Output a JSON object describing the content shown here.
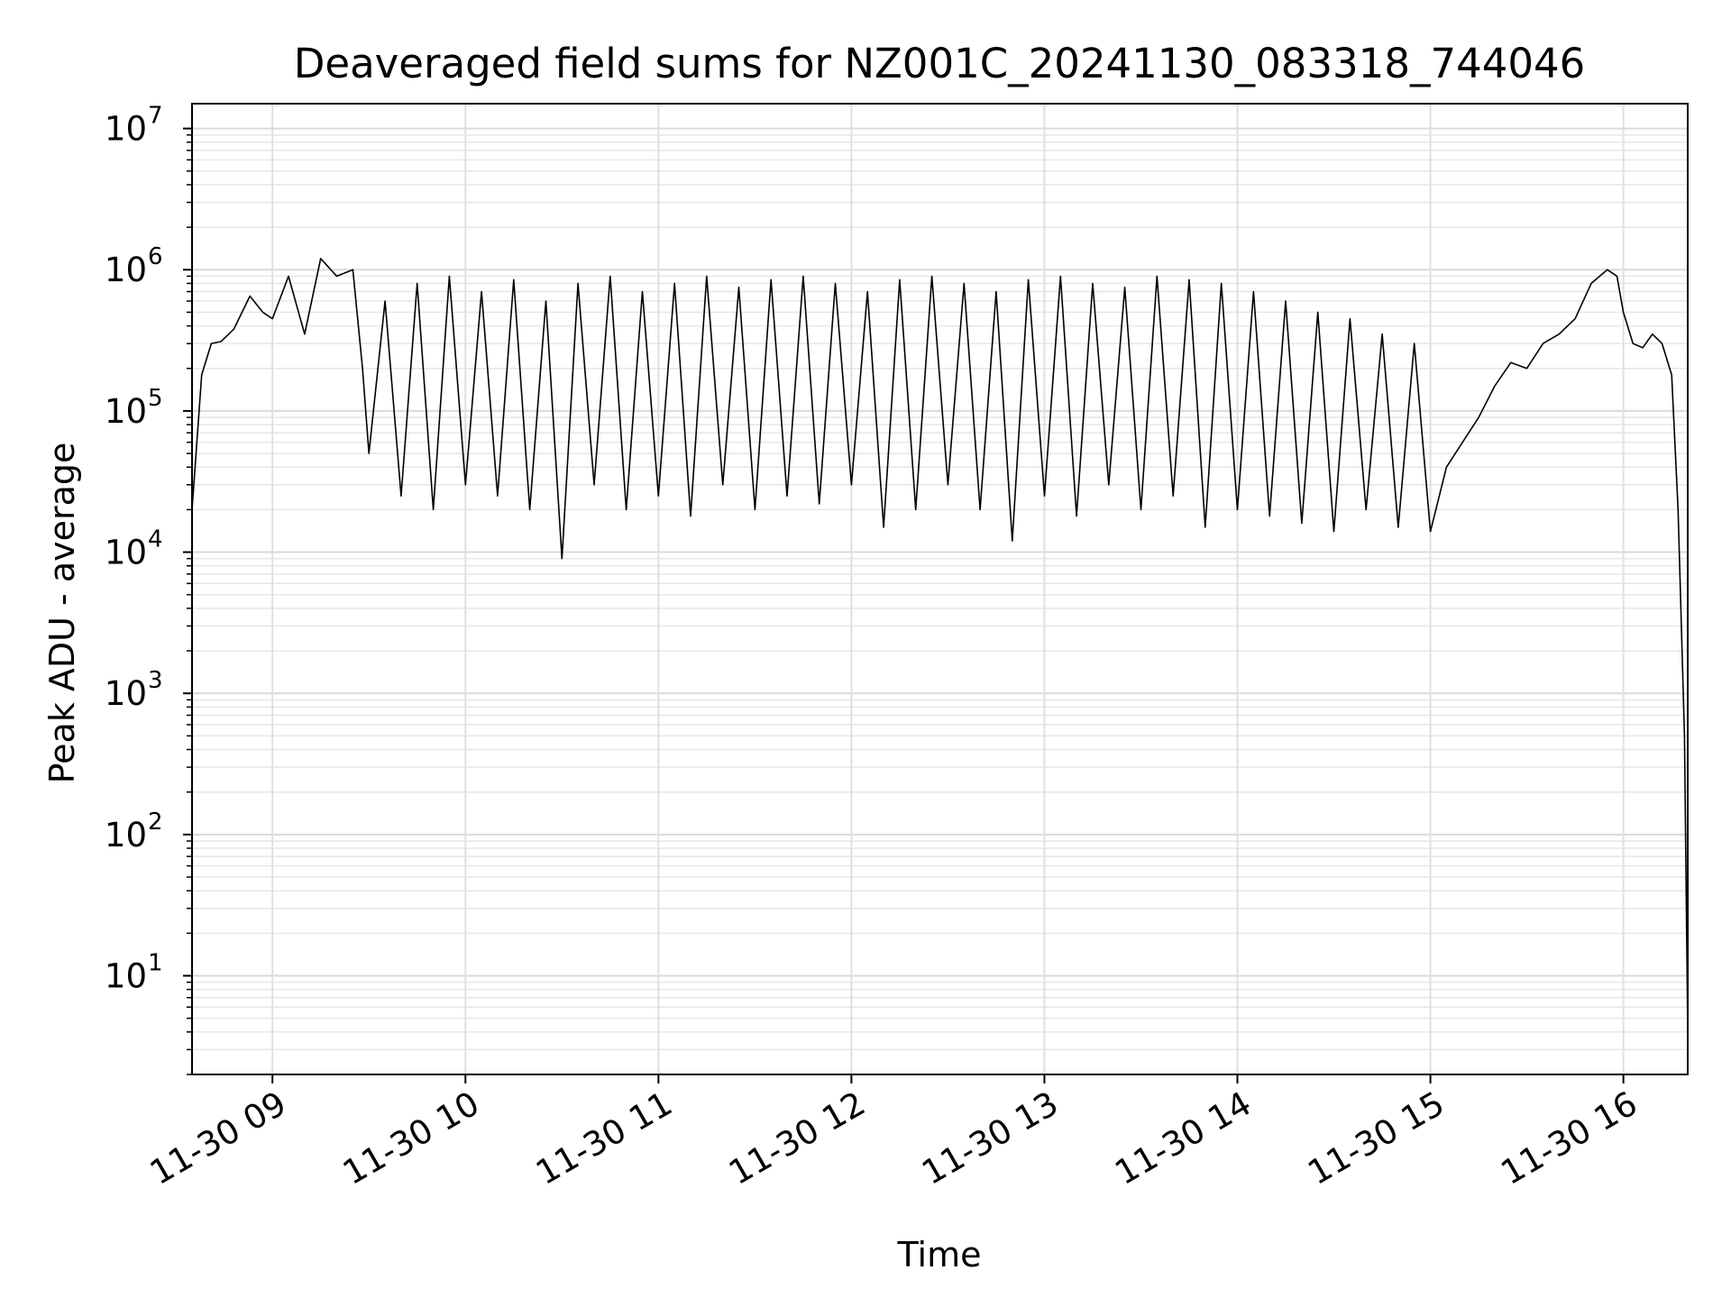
{
  "chart_data": {
    "type": "line",
    "title": "Deaveraged field sums for NZ001C_20241130_083318_744046",
    "xlabel": "Time",
    "ylabel": "Peak ADU - average",
    "yscale": "log",
    "xlim": [
      "2024-11-30 08:35",
      "2024-11-30 16:20"
    ],
    "ylim": [
      2,
      15000000
    ],
    "grid": true,
    "line_color": "#000000",
    "x_ticks": [
      {
        "time": "2024-11-30 09:00",
        "label": "11-30 09"
      },
      {
        "time": "2024-11-30 10:00",
        "label": "11-30 10"
      },
      {
        "time": "2024-11-30 11:00",
        "label": "11-30 11"
      },
      {
        "time": "2024-11-30 12:00",
        "label": "11-30 12"
      },
      {
        "time": "2024-11-30 13:00",
        "label": "11-30 13"
      },
      {
        "time": "2024-11-30 14:00",
        "label": "11-30 14"
      },
      {
        "time": "2024-11-30 15:00",
        "label": "11-30 15"
      },
      {
        "time": "2024-11-30 16:00",
        "label": "11-30 16"
      }
    ],
    "y_ticks": [
      {
        "value": 10,
        "base": "10",
        "exp": "1"
      },
      {
        "value": 100,
        "base": "10",
        "exp": "2"
      },
      {
        "value": 1000,
        "base": "10",
        "exp": "3"
      },
      {
        "value": 10000,
        "base": "10",
        "exp": "4"
      },
      {
        "value": 100000,
        "base": "10",
        "exp": "5"
      },
      {
        "value": 1000000,
        "base": "10",
        "exp": "6"
      },
      {
        "value": 10000000,
        "base": "10",
        "exp": "7"
      }
    ],
    "series": [
      {
        "x": [
          "2024-11-30 08:35",
          "2024-11-30 08:38",
          "2024-11-30 08:41",
          "2024-11-30 08:44",
          "2024-11-30 08:48",
          "2024-11-30 08:53",
          "2024-11-30 08:57",
          "2024-11-30 09:00",
          "2024-11-30 09:05",
          "2024-11-30 09:10",
          "2024-11-30 09:15",
          "2024-11-30 09:20",
          "2024-11-30 09:25",
          "2024-11-30 09:28",
          "2024-11-30 09:30",
          "2024-11-30 09:35",
          "2024-11-30 09:40",
          "2024-11-30 09:45",
          "2024-11-30 09:50",
          "2024-11-30 09:55",
          "2024-11-30 10:00",
          "2024-11-30 10:05",
          "2024-11-30 10:10",
          "2024-11-30 10:15",
          "2024-11-30 10:20",
          "2024-11-30 10:25",
          "2024-11-30 10:30",
          "2024-11-30 10:35",
          "2024-11-30 10:40",
          "2024-11-30 10:45",
          "2024-11-30 10:50",
          "2024-11-30 10:55",
          "2024-11-30 11:00",
          "2024-11-30 11:05",
          "2024-11-30 11:10",
          "2024-11-30 11:15",
          "2024-11-30 11:20",
          "2024-11-30 11:25",
          "2024-11-30 11:30",
          "2024-11-30 11:35",
          "2024-11-30 11:40",
          "2024-11-30 11:45",
          "2024-11-30 11:50",
          "2024-11-30 11:55",
          "2024-11-30 12:00",
          "2024-11-30 12:05",
          "2024-11-30 12:10",
          "2024-11-30 12:15",
          "2024-11-30 12:20",
          "2024-11-30 12:25",
          "2024-11-30 12:30",
          "2024-11-30 12:35",
          "2024-11-30 12:40",
          "2024-11-30 12:45",
          "2024-11-30 12:50",
          "2024-11-30 12:55",
          "2024-11-30 13:00",
          "2024-11-30 13:05",
          "2024-11-30 13:10",
          "2024-11-30 13:15",
          "2024-11-30 13:20",
          "2024-11-30 13:25",
          "2024-11-30 13:30",
          "2024-11-30 13:35",
          "2024-11-30 13:40",
          "2024-11-30 13:45",
          "2024-11-30 13:50",
          "2024-11-30 13:55",
          "2024-11-30 14:00",
          "2024-11-30 14:05",
          "2024-11-30 14:10",
          "2024-11-30 14:15",
          "2024-11-30 14:20",
          "2024-11-30 14:25",
          "2024-11-30 14:30",
          "2024-11-30 14:35",
          "2024-11-30 14:40",
          "2024-11-30 14:45",
          "2024-11-30 14:50",
          "2024-11-30 14:55",
          "2024-11-30 15:00",
          "2024-11-30 15:05",
          "2024-11-30 15:10",
          "2024-11-30 15:15",
          "2024-11-30 15:20",
          "2024-11-30 15:25",
          "2024-11-30 15:30",
          "2024-11-30 15:35",
          "2024-11-30 15:40",
          "2024-11-30 15:45",
          "2024-11-30 15:50",
          "2024-11-30 15:55",
          "2024-11-30 15:58",
          "2024-11-30 16:00",
          "2024-11-30 16:03",
          "2024-11-30 16:06",
          "2024-11-30 16:09",
          "2024-11-30 16:12",
          "2024-11-30 16:15",
          "2024-11-30 16:17",
          "2024-11-30 16:19",
          "2024-11-30 16:20"
        ],
        "y": [
          20000,
          180000,
          300000,
          310000,
          380000,
          650000,
          500000,
          450000,
          900000,
          350000,
          1200000,
          900000,
          1000000,
          200000,
          50000,
          600000,
          25000,
          800000,
          20000,
          900000,
          30000,
          700000,
          25000,
          850000,
          20000,
          600000,
          9000,
          800000,
          30000,
          900000,
          20000,
          700000,
          25000,
          800000,
          18000,
          900000,
          30000,
          750000,
          20000,
          850000,
          25000,
          900000,
          22000,
          800000,
          30000,
          700000,
          15000,
          850000,
          20000,
          900000,
          30000,
          800000,
          20000,
          700000,
          12000,
          850000,
          25000,
          900000,
          18000,
          800000,
          30000,
          750000,
          20000,
          900000,
          25000,
          850000,
          15000,
          800000,
          20000,
          700000,
          18000,
          600000,
          16000,
          500000,
          14000,
          450000,
          20000,
          350000,
          15000,
          300000,
          14000,
          40000,
          60000,
          90000,
          150000,
          220000,
          200000,
          300000,
          350000,
          450000,
          800000,
          1000000,
          900000,
          500000,
          300000,
          280000,
          350000,
          300000,
          180000,
          20000,
          500,
          4
        ]
      }
    ]
  }
}
